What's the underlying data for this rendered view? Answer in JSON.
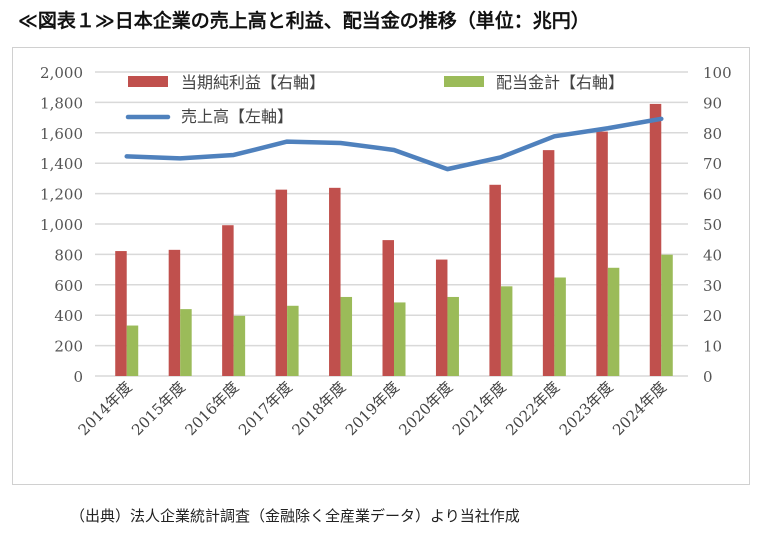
{
  "title": "≪図表１≫日本企業の売上高と利益、配当金の推移（単位：兆円）",
  "caption": "（出典）法人企業統計調査（金融除く全産業データ）より当社作成",
  "chart_data": {
    "type": "bar",
    "title": "≪図表１≫日本企業の売上高と利益、配当金の推移（単位：兆円）",
    "categories": [
      "2014年度",
      "2015年度",
      "2016年度",
      "2017年度",
      "2018年度",
      "2019年度",
      "2020年度",
      "2021年度",
      "2022年度",
      "2023年度",
      "2024年度"
    ],
    "series": [
      {
        "name": "当期純利益【右軸】",
        "type": "bar",
        "axis": "right",
        "color": "#c0504d",
        "values": [
          41.1,
          41.5,
          49.6,
          61.3,
          61.9,
          44.7,
          38.3,
          62.9,
          74.3,
          80.4,
          89.5
        ]
      },
      {
        "name": "配当金計【右軸】",
        "type": "bar",
        "axis": "right",
        "color": "#9bbb59",
        "values": [
          16.6,
          22.0,
          19.8,
          23.1,
          26.0,
          24.2,
          26.0,
          29.5,
          32.4,
          35.6,
          39.9
        ]
      },
      {
        "name": "売上高【左軸】",
        "type": "line",
        "axis": "left",
        "color": "#4f81bd",
        "values": [
          1445,
          1432,
          1454,
          1542,
          1533,
          1487,
          1361,
          1439,
          1577,
          1630,
          1692
        ]
      }
    ],
    "left_axis": {
      "range": [
        0,
        2000
      ],
      "ticks": [
        "0",
        "200",
        "400",
        "600",
        "800",
        "1,000",
        "1,200",
        "1,400",
        "1,600",
        "1,800",
        "2,000"
      ]
    },
    "right_axis": {
      "range": [
        0,
        100
      ],
      "ticks": [
        "0",
        "10",
        "20",
        "30",
        "40",
        "50",
        "60",
        "70",
        "80",
        "90",
        "100"
      ]
    },
    "grid": true,
    "legend": "top-inside"
  }
}
